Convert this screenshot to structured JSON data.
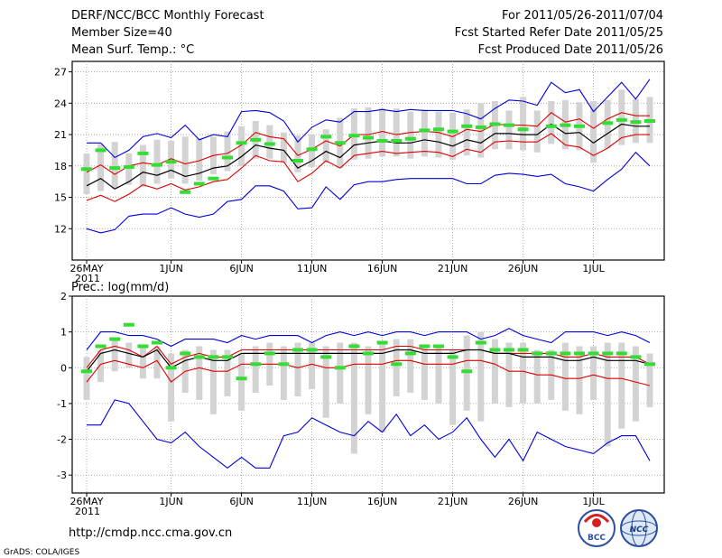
{
  "header": {
    "left": [
      "DERF/NCC/BCC Monthly Forecast",
      "Member Size=40",
      "Mean Surf. Temp.: °C"
    ],
    "right": [
      "For 2011/05/26-2011/07/04",
      "Fcst Started Refer Date 2011/05/25",
      "Fcst Produced Date 2011/05/26"
    ]
  },
  "precip_label": "Prec.: log(mm/d)",
  "footer": {
    "url": "http://cmdp.ncc.cma.gov.cn",
    "grads": "GrADS: COLA/IGES",
    "logo_left": "BCC",
    "logo_right": "NCC"
  },
  "colors": {
    "envelope": "#0000dd",
    "spread": "#dd0000",
    "mean": "#000000",
    "obs": "#33dd33",
    "box": "#d3d3d3"
  },
  "chart_data": [
    {
      "type": "line",
      "title": "Mean Surf. Temp.: °C",
      "x_days": 40,
      "xtick_days": [
        0,
        6,
        11,
        16,
        21,
        26,
        31,
        36
      ],
      "xtick_labels": [
        "26MAY",
        "1JUN",
        "6JUN",
        "11JUN",
        "16JUN",
        "21JUN",
        "26JUN",
        "1JUL"
      ],
      "xtick_sub": [
        "2011",
        "",
        "",
        "",
        "",
        "",
        "",
        ""
      ],
      "ylim": [
        9,
        28
      ],
      "yticks": [
        12,
        15,
        18,
        21,
        24,
        27
      ],
      "series": [
        {
          "name": "max",
          "role": "envelope",
          "values": [
            20.2,
            20.2,
            18.8,
            19.5,
            20.8,
            21.1,
            20.7,
            21.9,
            20.5,
            21.0,
            20.8,
            23.2,
            23.3,
            23.1,
            22.3,
            20.3,
            21.7,
            22.4,
            22.2,
            23.2,
            23.2,
            23.4,
            23.2,
            23.4,
            23.3,
            23.3,
            23.3,
            23.0,
            22.5,
            23.5,
            24.3,
            24.2,
            23.8,
            26.0,
            25.0,
            25.3,
            23.2,
            24.6,
            26.0,
            24.4,
            26.3
          ]
        },
        {
          "name": "upper",
          "role": "spread",
          "values": [
            17.4,
            18.1,
            17.2,
            18.0,
            18.3,
            18.1,
            18.7,
            18.2,
            18.5,
            19.0,
            19.2,
            20.0,
            21.2,
            20.8,
            20.6,
            19.0,
            19.6,
            20.4,
            19.9,
            21.0,
            21.0,
            21.3,
            21.0,
            21.2,
            21.3,
            21.2,
            20.8,
            21.5,
            21.3,
            22.0,
            21.9,
            21.9,
            21.8,
            23.1,
            22.2,
            22.5,
            21.6,
            22.5,
            23.1,
            22.8,
            22.8
          ]
        },
        {
          "name": "mean",
          "role": "mean",
          "values": [
            16.1,
            16.8,
            15.8,
            16.5,
            17.4,
            17.1,
            17.6,
            17.0,
            17.3,
            17.8,
            18.0,
            18.9,
            20.0,
            19.7,
            19.5,
            17.8,
            18.5,
            19.4,
            18.8,
            20.0,
            20.2,
            20.4,
            20.2,
            20.2,
            20.5,
            20.3,
            19.9,
            20.5,
            20.2,
            21.1,
            21.1,
            21.0,
            21.0,
            22.0,
            21.1,
            21.2,
            20.2,
            21.1,
            22.0,
            21.8,
            21.8
          ]
        },
        {
          "name": "lower",
          "role": "spread",
          "values": [
            14.7,
            15.2,
            14.6,
            15.3,
            16.2,
            15.8,
            16.3,
            15.7,
            16.0,
            16.5,
            16.7,
            17.8,
            19.0,
            18.5,
            18.4,
            16.5,
            17.3,
            18.5,
            17.8,
            19.0,
            19.2,
            19.4,
            19.2,
            19.3,
            19.4,
            19.3,
            18.9,
            19.6,
            19.3,
            20.3,
            20.4,
            20.3,
            20.3,
            21.1,
            20.0,
            19.8,
            19.0,
            19.7,
            20.7,
            21.0,
            21.0
          ]
        },
        {
          "name": "min",
          "role": "envelope",
          "values": [
            12.0,
            11.6,
            11.9,
            13.2,
            13.4,
            13.4,
            14.0,
            13.4,
            13.1,
            13.4,
            14.6,
            14.8,
            16.1,
            16.1,
            15.6,
            13.9,
            14.0,
            16.0,
            14.8,
            16.2,
            16.5,
            16.5,
            16.7,
            16.8,
            16.8,
            16.8,
            16.8,
            16.3,
            16.3,
            17.1,
            17.3,
            17.2,
            17.0,
            17.2,
            16.3,
            16.0,
            15.6,
            16.7,
            17.7,
            19.3,
            18.0
          ]
        },
        {
          "name": "observed",
          "role": "obs",
          "values": [
            17.7,
            19.5,
            17.8,
            17.9,
            19.2,
            18.1,
            18.4,
            15.5,
            16.3,
            16.8,
            18.8,
            20.2,
            20.5,
            20.1,
            null,
            18.5,
            19.6,
            20.8,
            20.2,
            20.9,
            20.7,
            20.4,
            20.4,
            20.6,
            21.4,
            21.5,
            21.3,
            21.8,
            21.7,
            22.0,
            21.9,
            21.5,
            null,
            21.8,
            21.9,
            21.8,
            null,
            22.1,
            22.4,
            22.2,
            22.3
          ]
        },
        {
          "name": "box_high",
          "role": "box",
          "values": [
            19.2,
            20.1,
            20.3,
            19.2,
            20.0,
            20.5,
            20.4,
            20.8,
            20.6,
            20.8,
            21.3,
            21.8,
            22.3,
            21.9,
            21.2,
            20.9,
            21.0,
            21.5,
            22.6,
            23.5,
            23.6,
            23.5,
            23.5,
            23.2,
            23.4,
            23.2,
            23.1,
            23.4,
            24.0,
            24.2,
            23.3,
            24.6,
            23.3,
            24.2,
            24.3,
            24.1,
            24.2,
            24.3,
            25.3,
            24.4,
            24.6
          ]
        },
        {
          "name": "box_low",
          "role": "box",
          "values": [
            15.3,
            15.6,
            15.8,
            16.2,
            16.0,
            16.3,
            16.8,
            16.3,
            16.6,
            17.2,
            17.5,
            18.0,
            18.7,
            18.7,
            18.3,
            17.4,
            17.9,
            18.3,
            17.8,
            18.6,
            18.7,
            18.9,
            18.9,
            18.7,
            18.9,
            18.8,
            18.6,
            19.0,
            18.8,
            19.6,
            19.6,
            19.5,
            19.3,
            20.1,
            19.6,
            19.5,
            18.3,
            19.7,
            20.0,
            20.2,
            20.2
          ]
        }
      ]
    },
    {
      "type": "line",
      "title": "Prec.: log(mm/d)",
      "x_days": 40,
      "xtick_days": [
        0,
        6,
        11,
        16,
        21,
        26,
        31,
        36
      ],
      "xtick_labels": [
        "26MAY",
        "1JUN",
        "6JUN",
        "11JUN",
        "16JUN",
        "21JUN",
        "26JUN",
        "1JUL"
      ],
      "xtick_sub": [
        "2011",
        "",
        "",
        "",
        "",
        "",
        "",
        ""
      ],
      "ylim": [
        -3.5,
        2
      ],
      "yticks": [
        -3,
        -2,
        -1,
        0,
        1,
        2
      ],
      "series": [
        {
          "name": "max",
          "role": "envelope",
          "values": [
            0.5,
            1.0,
            1.0,
            0.9,
            0.9,
            0.8,
            0.6,
            0.8,
            0.8,
            0.8,
            0.7,
            0.9,
            0.8,
            0.9,
            0.9,
            0.9,
            0.7,
            0.9,
            1.0,
            0.9,
            1.0,
            0.9,
            1.0,
            1.0,
            0.9,
            1.0,
            1.0,
            1.0,
            0.8,
            0.9,
            1.1,
            0.9,
            0.8,
            0.7,
            1.0,
            1.0,
            1.0,
            0.9,
            1.0,
            0.9,
            0.7
          ]
        },
        {
          "name": "upper",
          "role": "spread",
          "values": [
            0.0,
            0.5,
            0.6,
            0.5,
            0.3,
            0.6,
            0.1,
            0.3,
            0.4,
            0.3,
            0.3,
            0.5,
            0.5,
            0.5,
            0.5,
            0.5,
            0.5,
            0.5,
            0.5,
            0.5,
            0.5,
            0.5,
            0.6,
            0.6,
            0.5,
            0.5,
            0.5,
            0.5,
            0.5,
            0.4,
            0.4,
            0.4,
            0.4,
            0.4,
            0.3,
            0.3,
            0.4,
            0.3,
            0.3,
            0.3,
            0.1
          ]
        },
        {
          "name": "mean",
          "role": "mean",
          "values": [
            -0.1,
            0.4,
            0.5,
            0.4,
            0.3,
            0.5,
            0.0,
            0.2,
            0.3,
            0.2,
            0.2,
            0.4,
            0.4,
            0.4,
            0.4,
            0.4,
            0.4,
            0.4,
            0.4,
            0.4,
            0.4,
            0.4,
            0.5,
            0.5,
            0.4,
            0.4,
            0.4,
            0.5,
            0.5,
            0.4,
            0.4,
            0.3,
            0.3,
            0.3,
            0.2,
            0.2,
            0.3,
            0.2,
            0.2,
            0.2,
            0.1
          ]
        },
        {
          "name": "lower",
          "role": "spread",
          "values": [
            -0.4,
            0.1,
            0.2,
            0.1,
            0.0,
            0.2,
            -0.4,
            -0.1,
            0.0,
            -0.1,
            -0.1,
            0.1,
            0.1,
            0.1,
            0.1,
            0.0,
            0.1,
            0.0,
            0.0,
            0.1,
            0.1,
            0.1,
            0.2,
            0.2,
            0.1,
            0.1,
            0.1,
            0.2,
            0.2,
            0.1,
            -0.1,
            -0.1,
            -0.2,
            -0.2,
            -0.3,
            -0.3,
            -0.2,
            -0.3,
            -0.3,
            -0.4,
            -0.5
          ]
        },
        {
          "name": "min",
          "role": "envelope",
          "values": [
            -1.6,
            -1.6,
            -0.9,
            -1.0,
            -1.5,
            -2.0,
            -2.1,
            -1.8,
            -2.2,
            -2.5,
            -2.8,
            -2.5,
            -2.8,
            -2.8,
            -1.9,
            -1.8,
            -1.4,
            -1.6,
            -1.8,
            -1.9,
            -1.5,
            -1.8,
            -1.3,
            -1.9,
            -1.6,
            -2.0,
            -1.8,
            -1.4,
            -2.0,
            -2.5,
            -2.0,
            -2.6,
            -1.8,
            -2.0,
            -2.2,
            -2.3,
            -2.4,
            -2.1,
            -1.9,
            -1.9,
            -2.6
          ]
        },
        {
          "name": "observed",
          "role": "obs",
          "values": [
            -0.1,
            0.6,
            0.8,
            1.2,
            0.6,
            0.7,
            0.0,
            0.4,
            0.3,
            0.3,
            0.3,
            -0.3,
            0.1,
            0.4,
            0.1,
            0.5,
            0.5,
            0.3,
            0.0,
            0.6,
            0.4,
            0.7,
            0.1,
            0.4,
            0.6,
            0.6,
            0.3,
            -0.1,
            0.7,
            0.5,
            0.5,
            0.5,
            0.4,
            0.4,
            0.4,
            0.4,
            0.4,
            0.4,
            0.4,
            0.3,
            0.1
          ]
        },
        {
          "name": "box_high",
          "role": "box",
          "values": [
            0.3,
            0.5,
            0.8,
            0.7,
            0.6,
            0.6,
            0.4,
            0.5,
            0.6,
            0.5,
            0.5,
            0.4,
            0.6,
            0.7,
            0.6,
            0.7,
            0.7,
            0.6,
            0.7,
            0.7,
            0.6,
            0.7,
            0.8,
            0.8,
            0.6,
            0.6,
            0.5,
            0.9,
            1.0,
            0.8,
            0.7,
            0.7,
            0.5,
            0.5,
            0.7,
            0.6,
            0.6,
            0.7,
            0.7,
            0.6,
            0.4
          ]
        },
        {
          "name": "box_low",
          "role": "box",
          "values": [
            -0.9,
            -0.4,
            -0.1,
            0.0,
            -0.3,
            -0.3,
            -1.5,
            -0.7,
            -0.9,
            -1.3,
            -0.8,
            -1.2,
            -0.7,
            -0.5,
            -0.9,
            -0.8,
            -0.6,
            -1.4,
            -1.0,
            -2.4,
            -1.3,
            -1.8,
            -0.8,
            -0.7,
            -0.9,
            -1.0,
            -1.6,
            -1.2,
            -1.5,
            -1.0,
            -1.1,
            -1.0,
            -1.0,
            -0.9,
            -1.2,
            -1.3,
            -0.9,
            -2.2,
            -1.7,
            -1.5,
            -1.1
          ]
        }
      ]
    }
  ]
}
